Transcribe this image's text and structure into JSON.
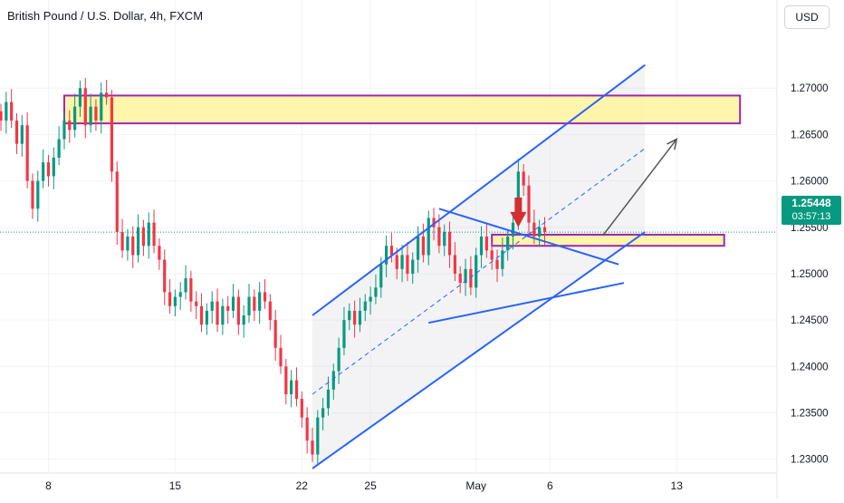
{
  "header": {
    "title": "British Pound / U.S. Dollar, 4h, FXCM",
    "currency_label": "USD"
  },
  "last_price": {
    "value": "1.25448",
    "countdown": "03:57:13"
  },
  "colors": {
    "up": "#089981",
    "down": "#f23645",
    "channel": "#2962ff",
    "zone_fill": "#fff59d",
    "zone_border": "#9c27b0",
    "arrow_marker": "#d32f2f",
    "projection": "#555555"
  },
  "chart_data": {
    "type": "candlestick",
    "title": "British Pound / U.S. Dollar, 4h, FXCM",
    "xlabel": "",
    "ylabel": "",
    "ylim": [
      1.2285,
      1.2795
    ],
    "y_ticks": [
      {
        "value": 1.27,
        "label": "1.27000"
      },
      {
        "value": 1.265,
        "label": "1.26500"
      },
      {
        "value": 1.26,
        "label": "1.26000"
      },
      {
        "value": 1.255,
        "label": "1.25500"
      },
      {
        "value": 1.25,
        "label": "1.25000"
      },
      {
        "value": 1.245,
        "label": "1.24500"
      },
      {
        "value": 1.24,
        "label": "1.24000"
      },
      {
        "value": 1.235,
        "label": "1.23500"
      },
      {
        "value": 1.23,
        "label": "1.23000"
      }
    ],
    "x_ticks": [
      {
        "bar": 9,
        "label": "8"
      },
      {
        "bar": 33,
        "label": "15"
      },
      {
        "bar": 57,
        "label": "22"
      },
      {
        "bar": 70,
        "label": "25"
      },
      {
        "bar": 90,
        "label": "May"
      },
      {
        "bar": 104,
        "label": "6"
      },
      {
        "bar": 128,
        "label": "13"
      }
    ],
    "grid": true,
    "candles": [
      [
        1.2675,
        1.2665
      ],
      [
        1.2665,
        1.2685
      ],
      [
        1.2685,
        1.2665
      ],
      [
        1.2665,
        1.264
      ],
      [
        1.264,
        1.266
      ],
      [
        1.266,
        1.26
      ],
      [
        1.26,
        1.257
      ],
      [
        1.257,
        1.26
      ],
      [
        1.26,
        1.262
      ],
      [
        1.262,
        1.2605
      ],
      [
        1.2605,
        1.2625
      ],
      [
        1.2625,
        1.2645
      ],
      [
        1.2645,
        1.2665
      ],
      [
        1.2665,
        1.2655
      ],
      [
        1.2655,
        1.268
      ],
      [
        1.268,
        1.27
      ],
      [
        1.27,
        1.266
      ],
      [
        1.266,
        1.268
      ],
      [
        1.268,
        1.2665
      ],
      [
        1.2665,
        1.2695
      ],
      [
        1.2695,
        1.269
      ],
      [
        1.269,
        1.261
      ],
      [
        1.261,
        1.2545
      ],
      [
        1.2545,
        1.2525
      ],
      [
        1.2525,
        1.254
      ],
      [
        1.254,
        1.252
      ],
      [
        1.252,
        1.255
      ],
      [
        1.255,
        1.253
      ],
      [
        1.253,
        1.2555
      ],
      [
        1.2555,
        1.253
      ],
      [
        1.253,
        1.2515
      ],
      [
        1.2515,
        1.248
      ],
      [
        1.248,
        1.2465
      ],
      [
        1.2465,
        1.2475
      ],
      [
        1.2475,
        1.248
      ],
      [
        1.248,
        1.2495
      ],
      [
        1.2495,
        1.247
      ],
      [
        1.247,
        1.2465
      ],
      [
        1.2465,
        1.2445
      ],
      [
        1.2445,
        1.246
      ],
      [
        1.246,
        1.247
      ],
      [
        1.247,
        1.2445
      ],
      [
        1.2445,
        1.2465
      ],
      [
        1.2465,
        1.246
      ],
      [
        1.246,
        1.2475
      ],
      [
        1.2475,
        1.2445
      ],
      [
        1.2445,
        1.2455
      ],
      [
        1.2455,
        1.2475
      ],
      [
        1.2475,
        1.246
      ],
      [
        1.246,
        1.248
      ],
      [
        1.248,
        1.247
      ],
      [
        1.247,
        1.245
      ],
      [
        1.245,
        1.242
      ],
      [
        1.242,
        1.24
      ],
      [
        1.24,
        1.237
      ],
      [
        1.237,
        1.2385
      ],
      [
        1.2385,
        1.2365
      ],
      [
        1.2365,
        1.2345
      ],
      [
        1.2345,
        1.232
      ],
      [
        1.232,
        1.2305
      ],
      [
        1.2305,
        1.2345
      ],
      [
        1.2345,
        1.2355
      ],
      [
        1.2355,
        1.2375
      ],
      [
        1.2375,
        1.2395
      ],
      [
        1.2395,
        1.242
      ],
      [
        1.242,
        1.245
      ],
      [
        1.245,
        1.246
      ],
      [
        1.246,
        1.2445
      ],
      [
        1.2445,
        1.246
      ],
      [
        1.246,
        1.247
      ],
      [
        1.247,
        1.2475
      ],
      [
        1.2475,
        1.2485
      ],
      [
        1.2485,
        1.251
      ],
      [
        1.251,
        1.253
      ],
      [
        1.253,
        1.252
      ],
      [
        1.252,
        1.2505
      ],
      [
        1.2505,
        1.252
      ],
      [
        1.252,
        1.25
      ],
      [
        1.25,
        1.2515
      ],
      [
        1.2515,
        1.254
      ],
      [
        1.254,
        1.252
      ],
      [
        1.252,
        1.256
      ],
      [
        1.256,
        1.255
      ],
      [
        1.255,
        1.253
      ],
      [
        1.253,
        1.2545
      ],
      [
        1.2545,
        1.252
      ],
      [
        1.252,
        1.25
      ],
      [
        1.25,
        1.249
      ],
      [
        1.249,
        1.2505
      ],
      [
        1.2505,
        1.2485
      ],
      [
        1.2485,
        1.252
      ],
      [
        1.252,
        1.254
      ],
      [
        1.254,
        1.2525
      ],
      [
        1.2525,
        1.2515
      ],
      [
        1.2515,
        1.2505
      ],
      [
        1.2505,
        1.2525
      ],
      [
        1.2525,
        1.254
      ],
      [
        1.254,
        1.2555
      ],
      [
        1.2555,
        1.261
      ],
      [
        1.261,
        1.2595
      ],
      [
        1.2595,
        1.2555
      ],
      [
        1.2555,
        1.254
      ],
      [
        1.254,
        1.255
      ],
      [
        1.255,
        1.2545
      ]
    ],
    "channel": {
      "upper": [
        [
          59,
          1.2455
        ],
        [
          122,
          1.2725
        ]
      ],
      "lower": [
        [
          59,
          1.229
        ],
        [
          122,
          1.2545
        ]
      ],
      "mid": [
        [
          59,
          1.237
        ],
        [
          122,
          1.2635
        ]
      ]
    },
    "triangle": {
      "upper": [
        [
          83,
          1.257
        ],
        [
          117,
          1.251
        ]
      ],
      "lower": [
        [
          81,
          1.2447
        ],
        [
          118,
          1.249
        ]
      ]
    },
    "zones": [
      {
        "bar_start": 12,
        "bar_end": 140,
        "top": 1.2692,
        "bottom": 1.2662
      },
      {
        "bar_start": 93,
        "bar_end": 137,
        "top": 1.2542,
        "bottom": 1.253
      }
    ],
    "projection_arrow": [
      [
        114,
        1.2541
      ],
      [
        128,
        1.2645
      ]
    ],
    "marker_arrow": {
      "bar": 98,
      "tip": 1.255,
      "base": 1.258
    },
    "last_price_line": 1.25448
  }
}
